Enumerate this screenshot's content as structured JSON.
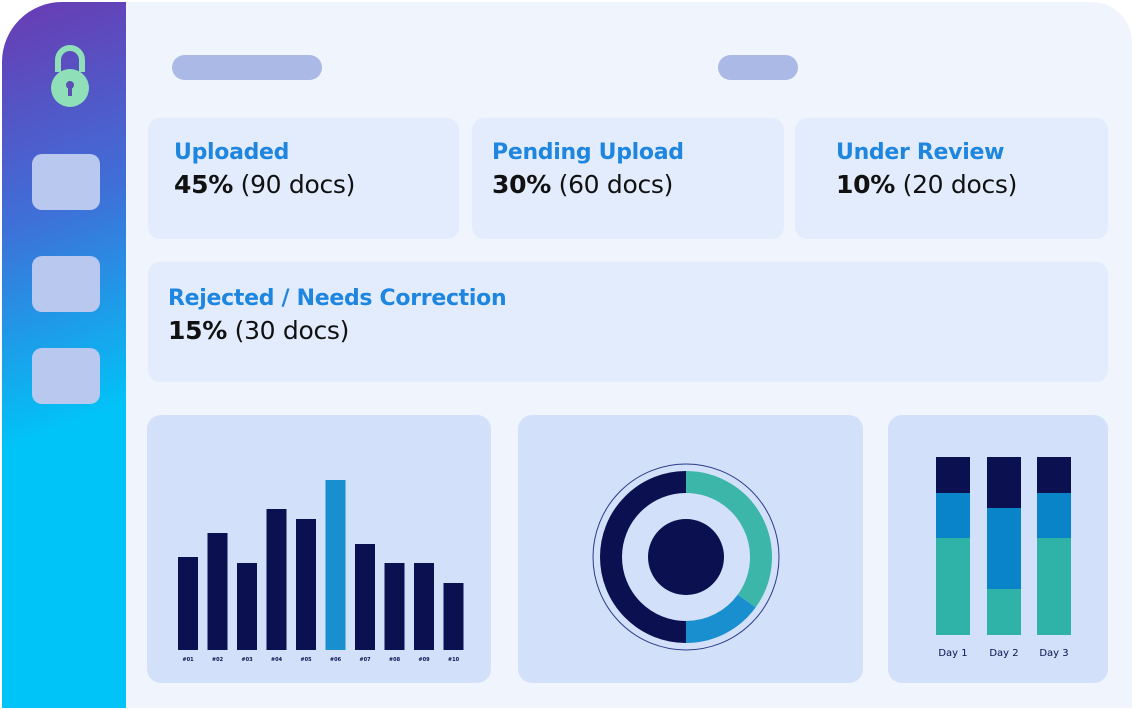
{
  "cards": [
    {
      "label": "Uploaded",
      "percent": "45%",
      "docs": "(90 docs)"
    },
    {
      "label": "Pending Upload",
      "percent": "30%",
      "docs": "(60 docs)"
    },
    {
      "label": "Under Review",
      "percent": "10%",
      "docs": "(20 docs)"
    },
    {
      "label": "Rejected / Needs Correction",
      "percent": "15%",
      "docs": "(30 docs)"
    }
  ],
  "chart_data": [
    {
      "type": "bar",
      "categories": [
        "#01",
        "#02",
        "#03",
        "#04",
        "#05",
        "#06",
        "#07",
        "#08",
        "#09",
        "#10"
      ],
      "values": [
        93,
        117,
        87,
        141,
        131,
        170,
        106,
        87,
        87,
        67
      ],
      "color": "#0b1150",
      "highlight_color": "#1a8fd0",
      "highlight_index": 5
    },
    {
      "type": "pie",
      "values": [
        35,
        15,
        50
      ],
      "colors": [
        "#3bb6a8",
        "#1a8fd0",
        "#0b1150"
      ]
    },
    {
      "type": "stacked-bar",
      "categories": [
        "Day 1",
        "Day 2",
        "Day 3"
      ],
      "series": [
        {
          "color": "#2fb3a8",
          "values": [
            97,
            46,
            97
          ]
        },
        {
          "color": "#0a84c8",
          "values": [
            45,
            81,
            45
          ]
        },
        {
          "color": "#0b1150",
          "values": [
            36,
            51,
            36
          ]
        }
      ]
    }
  ]
}
